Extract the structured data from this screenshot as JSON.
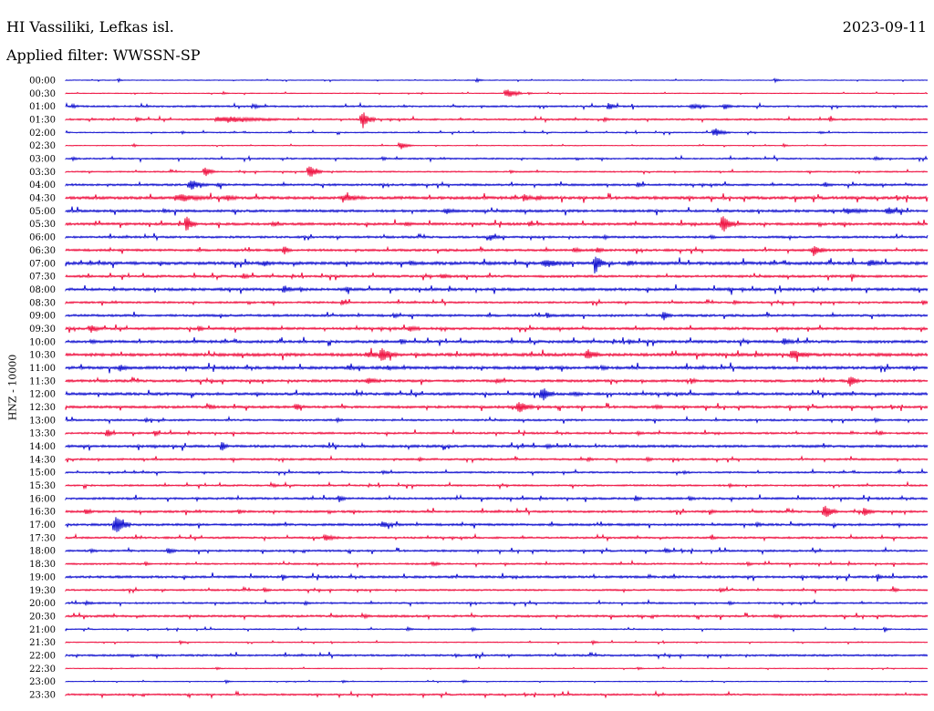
{
  "header": {
    "station": "HI Vassiliki, Lefkas isl.",
    "date": "2023-09-11",
    "filter": "Applied filter: WWSSN-SP"
  },
  "chart_data": {
    "type": "line",
    "ylabel": "HNZ - 10000",
    "rows": [
      {
        "label": "00:00",
        "color": "#0000cc",
        "noise": 0.4,
        "events": [
          [
            130,
            1.5,
            2
          ],
          [
            523,
            2,
            3
          ],
          [
            850,
            2,
            3
          ]
        ]
      },
      {
        "label": "00:30",
        "color": "#ee0033",
        "noise": 0.4,
        "events": [
          [
            245,
            1.5,
            2
          ],
          [
            557,
            5,
            7
          ],
          [
            580,
            1.5,
            2
          ]
        ]
      },
      {
        "label": "01:00",
        "color": "#0000cc",
        "noise": 0.9,
        "events": [
          [
            80,
            2,
            3
          ],
          [
            280,
            2,
            3
          ],
          [
            668,
            4,
            4
          ],
          [
            760,
            2,
            8
          ],
          [
            795,
            3,
            4
          ]
        ]
      },
      {
        "label": "01:30",
        "color": "#ee0033",
        "noise": 0.9,
        "events": [
          [
            150,
            2,
            3
          ],
          [
            250,
            3,
            25
          ],
          [
            398,
            9,
            6
          ],
          [
            663,
            2,
            3
          ],
          [
            910,
            2,
            3
          ]
        ]
      },
      {
        "label": "02:00",
        "color": "#0000cc",
        "noise": 0.6,
        "events": [
          [
            200,
            1.5,
            2
          ],
          [
            785,
            4,
            7
          ],
          [
            900,
            1.5,
            2
          ]
        ]
      },
      {
        "label": "02:30",
        "color": "#ee0033",
        "noise": 0.4,
        "events": [
          [
            147,
            2,
            2
          ],
          [
            440,
            4,
            6
          ],
          [
            860,
            1.5,
            2
          ]
        ]
      },
      {
        "label": "03:00",
        "color": "#0000cc",
        "noise": 0.8,
        "events": [
          [
            80,
            1.5,
            3
          ],
          [
            420,
            1.5,
            3
          ],
          [
            960,
            1.5,
            4
          ]
        ]
      },
      {
        "label": "03:30",
        "color": "#ee0033",
        "noise": 0.7,
        "events": [
          [
            225,
            6,
            5
          ],
          [
            340,
            8,
            6
          ],
          [
            560,
            1.5,
            3
          ]
        ]
      },
      {
        "label": "04:00",
        "color": "#0000cc",
        "noise": 1.1,
        "events": [
          [
            210,
            5,
            8
          ],
          [
            240,
            2,
            4
          ],
          [
            700,
            2,
            4
          ],
          [
            905,
            2,
            4
          ]
        ]
      },
      {
        "label": "04:30",
        "color": "#ee0033",
        "noise": 1.5,
        "events": [
          [
            200,
            3,
            14
          ],
          [
            250,
            2,
            5
          ],
          [
            380,
            2.5,
            10
          ],
          [
            575,
            3,
            5
          ],
          [
            590,
            2,
            4
          ]
        ]
      },
      {
        "label": "05:00",
        "color": "#0000cc",
        "noise": 1.3,
        "events": [
          [
            180,
            2,
            3
          ],
          [
            490,
            2.5,
            6
          ],
          [
            930,
            2.5,
            10
          ],
          [
            975,
            3,
            8
          ]
        ]
      },
      {
        "label": "05:30",
        "color": "#ee0033",
        "noise": 1.3,
        "events": [
          [
            205,
            8,
            5
          ],
          [
            300,
            2,
            4
          ],
          [
            445,
            2,
            3
          ],
          [
            580,
            2,
            3
          ],
          [
            793,
            9,
            6
          ]
        ]
      },
      {
        "label": "06:00",
        "color": "#0000cc",
        "noise": 1.1,
        "events": [
          [
            538,
            3,
            5
          ],
          [
            663,
            2,
            3
          ],
          [
            780,
            1.5,
            3
          ]
        ]
      },
      {
        "label": "06:30",
        "color": "#ee0033",
        "noise": 1.2,
        "events": [
          [
            312,
            4,
            4
          ],
          [
            630,
            2,
            5
          ],
          [
            655,
            3,
            3
          ],
          [
            893,
            5,
            6
          ]
        ]
      },
      {
        "label": "07:00",
        "color": "#0000cc",
        "noise": 1.6,
        "events": [
          [
            290,
            2,
            4
          ],
          [
            450,
            2,
            3
          ],
          [
            600,
            3,
            10
          ],
          [
            653,
            10,
            5
          ],
          [
            690,
            2,
            4
          ],
          [
            955,
            3,
            6
          ]
        ]
      },
      {
        "label": "07:30",
        "color": "#ee0033",
        "noise": 1.2,
        "events": [
          [
            267,
            3,
            3
          ],
          [
            485,
            2,
            5
          ],
          [
            934,
            3,
            3
          ]
        ]
      },
      {
        "label": "08:00",
        "color": "#0000cc",
        "noise": 1.4,
        "events": [
          [
            312,
            4,
            4
          ],
          [
            330,
            2,
            3
          ],
          [
            380,
            3,
            3
          ],
          [
            800,
            1.5,
            3
          ]
        ]
      },
      {
        "label": "08:30",
        "color": "#ee0033",
        "noise": 1.0,
        "events": [
          [
            375,
            3,
            3
          ],
          [
            805,
            2,
            3
          ],
          [
            1012,
            2,
            3
          ]
        ]
      },
      {
        "label": "09:00",
        "color": "#0000cc",
        "noise": 1.2,
        "events": [
          [
            432,
            2,
            3
          ],
          [
            600,
            3,
            3
          ],
          [
            728,
            5,
            4
          ]
        ]
      },
      {
        "label": "09:30",
        "color": "#ee0033",
        "noise": 1.3,
        "events": [
          [
            100,
            3,
            6
          ],
          [
            218,
            3,
            3
          ],
          [
            450,
            3,
            5
          ]
        ]
      },
      {
        "label": "10:00",
        "color": "#0000cc",
        "noise": 1.4,
        "events": [
          [
            100,
            2,
            3
          ],
          [
            440,
            2,
            3
          ],
          [
            690,
            2,
            3
          ],
          [
            860,
            3,
            5
          ]
        ]
      },
      {
        "label": "10:30",
        "color": "#ee0033",
        "noise": 1.6,
        "events": [
          [
            405,
            2,
            8
          ],
          [
            420,
            7,
            7
          ],
          [
            645,
            5,
            6
          ],
          [
            870,
            4,
            8
          ]
        ]
      },
      {
        "label": "11:00",
        "color": "#0000cc",
        "noise": 1.5,
        "events": [
          [
            132,
            3,
            4
          ],
          [
            383,
            2,
            4
          ],
          [
            425,
            2,
            3
          ],
          [
            660,
            2,
            3
          ]
        ]
      },
      {
        "label": "11:30",
        "color": "#ee0033",
        "noise": 1.3,
        "events": [
          [
            405,
            3,
            6
          ],
          [
            545,
            2,
            3
          ],
          [
            758,
            3,
            3
          ],
          [
            932,
            5,
            5
          ]
        ]
      },
      {
        "label": "12:00",
        "color": "#0000cc",
        "noise": 1.4,
        "events": [
          [
            595,
            7,
            6
          ],
          [
            630,
            2,
            4
          ]
        ]
      },
      {
        "label": "12:30",
        "color": "#ee0033",
        "noise": 1.3,
        "events": [
          [
            230,
            2,
            3
          ],
          [
            325,
            3,
            4
          ],
          [
            570,
            6,
            7
          ],
          [
            720,
            2,
            3
          ]
        ]
      },
      {
        "label": "13:00",
        "color": "#0000cc",
        "noise": 1.0,
        "events": [
          [
            160,
            2,
            3
          ],
          [
            370,
            2,
            3
          ],
          [
            960,
            2,
            3
          ]
        ]
      },
      {
        "label": "13:30",
        "color": "#ee0033",
        "noise": 1.0,
        "events": [
          [
            118,
            4,
            4
          ],
          [
            170,
            3,
            3
          ],
          [
            700,
            2,
            3
          ],
          [
            965,
            2,
            3
          ]
        ]
      },
      {
        "label": "14:00",
        "color": "#0000cc",
        "noise": 1.3,
        "events": [
          [
            243,
            6,
            3
          ],
          [
            600,
            1.5,
            3
          ]
        ]
      },
      {
        "label": "14:30",
        "color": "#ee0033",
        "noise": 1.0,
        "events": [
          [
            460,
            2,
            3
          ],
          [
            645,
            2,
            3
          ],
          [
            710,
            2,
            3
          ]
        ]
      },
      {
        "label": "15:00",
        "color": "#0000cc",
        "noise": 0.9,
        "events": [
          [
            420,
            1.5,
            3
          ],
          [
            750,
            1.5,
            3
          ]
        ]
      },
      {
        "label": "15:30",
        "color": "#ee0033",
        "noise": 0.9,
        "events": [
          [
            300,
            1.5,
            3
          ],
          [
            800,
            1.5,
            3
          ]
        ]
      },
      {
        "label": "16:00",
        "color": "#0000cc",
        "noise": 1.1,
        "events": [
          [
            372,
            4,
            3
          ],
          [
            697,
            3,
            3
          ],
          [
            756,
            2,
            3
          ]
        ]
      },
      {
        "label": "16:30",
        "color": "#ee0033",
        "noise": 1.1,
        "events": [
          [
            95,
            3,
            4
          ],
          [
            262,
            2,
            3
          ],
          [
            779,
            2,
            3
          ],
          [
            905,
            7,
            6
          ],
          [
            948,
            5,
            5
          ]
        ]
      },
      {
        "label": "17:00",
        "color": "#0000cc",
        "noise": 1.2,
        "events": [
          [
            128,
            10,
            7
          ],
          [
            420,
            3,
            5
          ],
          [
            830,
            2,
            3
          ]
        ]
      },
      {
        "label": "17:30",
        "color": "#ee0033",
        "noise": 1.0,
        "events": [
          [
            358,
            3,
            6
          ],
          [
            780,
            1.5,
            3
          ]
        ]
      },
      {
        "label": "18:00",
        "color": "#0000cc",
        "noise": 1.0,
        "events": [
          [
            100,
            2,
            3
          ],
          [
            185,
            3,
            4
          ],
          [
            730,
            3,
            3
          ]
        ]
      },
      {
        "label": "18:30",
        "color": "#ee0033",
        "noise": 0.9,
        "events": [
          [
            160,
            2,
            3
          ],
          [
            475,
            2,
            4
          ],
          [
            820,
            2,
            3
          ]
        ]
      },
      {
        "label": "19:00",
        "color": "#0000cc",
        "noise": 1.2,
        "events": [
          [
            310,
            2,
            3
          ],
          [
            962,
            3,
            3
          ]
        ]
      },
      {
        "label": "19:30",
        "color": "#ee0033",
        "noise": 0.9,
        "events": [
          [
            290,
            2,
            3
          ],
          [
            790,
            2,
            3
          ],
          [
            980,
            2,
            3
          ]
        ]
      },
      {
        "label": "20:00",
        "color": "#0000cc",
        "noise": 0.9,
        "events": [
          [
            95,
            2,
            3
          ],
          [
            335,
            2,
            3
          ],
          [
            800,
            2,
            3
          ]
        ]
      },
      {
        "label": "20:30",
        "color": "#ee0033",
        "noise": 1.1,
        "events": [
          [
            400,
            1.5,
            3
          ],
          [
            850,
            1.5,
            3
          ]
        ]
      },
      {
        "label": "21:00",
        "color": "#0000cc",
        "noise": 0.6,
        "events": [
          [
            447,
            2,
            3
          ],
          [
            518,
            2,
            3
          ],
          [
            970,
            2,
            3
          ]
        ]
      },
      {
        "label": "21:30",
        "color": "#ee0033",
        "noise": 0.5,
        "events": [
          [
            198,
            2,
            3
          ],
          [
            650,
            2,
            3
          ]
        ]
      },
      {
        "label": "22:00",
        "color": "#0000cc",
        "noise": 1.0,
        "events": [
          [
            500,
            1.5,
            3
          ]
        ]
      },
      {
        "label": "22:30",
        "color": "#ee0033",
        "noise": 0.4,
        "events": [
          [
            238,
            1.5,
            3
          ],
          [
            700,
            1.5,
            3
          ]
        ]
      },
      {
        "label": "23:00",
        "color": "#0000cc",
        "noise": 0.4,
        "events": [
          [
            248,
            2,
            3
          ],
          [
            376,
            1.5,
            3
          ],
          [
            508,
            1.5,
            3
          ]
        ]
      },
      {
        "label": "23:30",
        "color": "#ee0033",
        "noise": 0.9,
        "events": []
      }
    ]
  }
}
